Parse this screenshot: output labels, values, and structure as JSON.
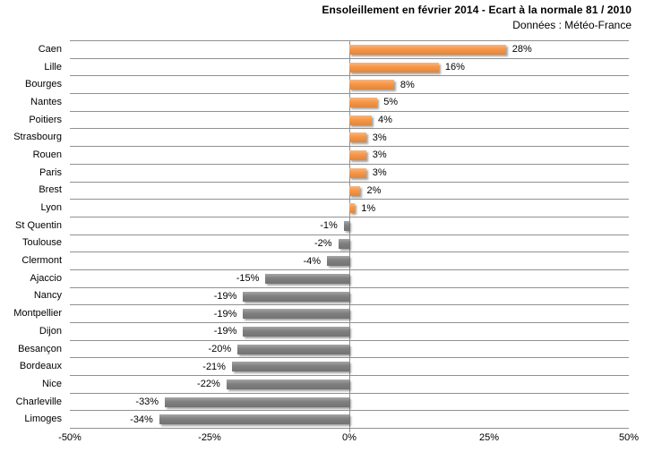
{
  "colors": {
    "positive_bar": "#F79646",
    "negative_bar": "#7F7F7F",
    "gridline": "#919191",
    "text": "#000000",
    "background": "#FFFFFF"
  },
  "chart_data": {
    "type": "bar",
    "orientation": "horizontal",
    "title": "Ensoleillement en février 2014 - Ecart à la normale 81 / 2010",
    "subtitle": "Données : Météo-France",
    "categories": [
      "Caen",
      "Lille",
      "Bourges",
      "Nantes",
      "Poitiers",
      "Strasbourg",
      "Rouen",
      "Paris",
      "Brest",
      "Lyon",
      "St Quentin",
      "Toulouse",
      "Clermont",
      "Ajaccio",
      "Nancy",
      "Montpellier",
      "Dijon",
      "Besançon",
      "Bordeaux",
      "Nice",
      "Charleville",
      "Limoges"
    ],
    "values": [
      28,
      16,
      8,
      5,
      4,
      3,
      3,
      3,
      2,
      1,
      -1,
      -2,
      -4,
      -15,
      -19,
      -19,
      -19,
      -20,
      -21,
      -22,
      -33,
      -34
    ],
    "value_labels": [
      "28%",
      "16%",
      "8%",
      "5%",
      "4%",
      "3%",
      "3%",
      "3%",
      "2%",
      "1%",
      "-1%",
      "-2%",
      "-4%",
      "-15%",
      "-19%",
      "-19%",
      "-19%",
      "-20%",
      "-21%",
      "-22%",
      "-33%",
      "-34%"
    ],
    "x_ticks": [
      {
        "value": -50,
        "label": "-50%"
      },
      {
        "value": -25,
        "label": "-25%"
      },
      {
        "value": 0,
        "label": "0%"
      },
      {
        "value": 25,
        "label": "25%"
      },
      {
        "value": 50,
        "label": "50%"
      }
    ],
    "xlim": [
      -50,
      50
    ],
    "grid": "horizontal category separators and zero axis line",
    "legend": "none",
    "bar_colors": {
      "positive": "orange",
      "negative": "gray"
    }
  }
}
